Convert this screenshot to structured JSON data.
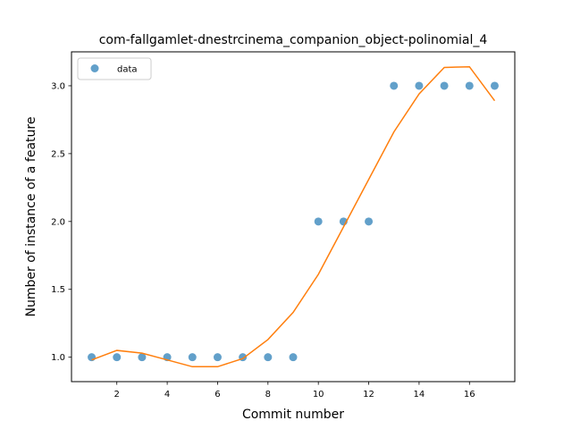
{
  "chart_data": {
    "type": "scatter",
    "title": "com-fallgamlet-dnestrcinema_companion_object-polinomial_4",
    "xlabel": "Commit number",
    "ylabel": "Number of instance of a feature",
    "xlim": [
      0.2,
      17.8
    ],
    "ylim": [
      0.82,
      3.25
    ],
    "xticks": [
      2,
      4,
      6,
      8,
      10,
      12,
      14,
      16
    ],
    "yticks": [
      1.0,
      1.5,
      2.0,
      2.5,
      3.0
    ],
    "ytick_labels": [
      "1.0",
      "1.5",
      "2.0",
      "2.5",
      "3.0"
    ],
    "legend_position": "top-left",
    "grid": false,
    "series": [
      {
        "name": "data",
        "kind": "scatter",
        "color": "#1f77b4",
        "x": [
          1,
          2,
          3,
          4,
          5,
          6,
          7,
          8,
          9,
          10,
          11,
          12,
          13,
          14,
          15,
          16,
          17
        ],
        "y": [
          1,
          1,
          1,
          1,
          1,
          1,
          1,
          1,
          1,
          2,
          2,
          2,
          3,
          3,
          3,
          3,
          3
        ]
      },
      {
        "kind": "line",
        "color": "#ff7f0e",
        "x": [
          1,
          2,
          3,
          4,
          5,
          6,
          7,
          8,
          9,
          10,
          11,
          12,
          13,
          14,
          15,
          16,
          17
        ],
        "y": [
          0.98,
          1.05,
          1.03,
          0.98,
          0.93,
          0.93,
          0.99,
          1.13,
          1.33,
          1.61,
          1.96,
          2.31,
          2.66,
          2.94,
          3.135,
          3.14,
          2.89
        ]
      }
    ]
  }
}
